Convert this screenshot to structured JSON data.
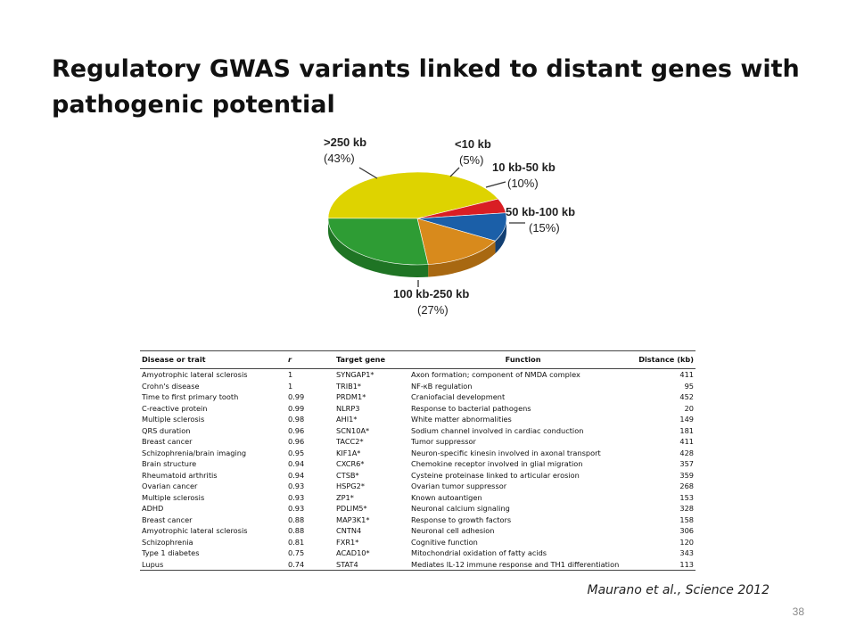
{
  "slide": {
    "title": "Regulatory GWAS variants linked to distant genes with pathogenic potential",
    "citation": "Maurano et al., Science 2012",
    "page_number": "38"
  },
  "pie": {
    "slices": [
      {
        "label": ">250 kb",
        "pct": "(43%)",
        "color": "#ded300",
        "side": "#b5aa00"
      },
      {
        "label": "<10 kb",
        "pct": "(5%)",
        "color": "#d91e24",
        "side": "#a8151a"
      },
      {
        "label": "10 kb-50 kb",
        "pct": "(10%)",
        "color": "#1b5fa8",
        "side": "#123f72"
      },
      {
        "label": "50 kb-100 kb",
        "pct": "(15%)",
        "color": "#d88a1c",
        "side": "#a86811"
      },
      {
        "label": "100 kb-250 kb",
        "pct": "(27%)",
        "color": "#2e9c34",
        "side": "#1f7424"
      }
    ]
  },
  "table": {
    "headers": {
      "trait": "Disease or trait",
      "r": "r",
      "gene": "Target gene",
      "function": "Function",
      "distance": "Distance (kb)"
    },
    "rows": [
      {
        "trait": "Amyotrophic lateral sclerosis",
        "r": "1",
        "gene": "SYNGAP1*",
        "function": "Axon formation; component of NMDA complex",
        "distance": "411"
      },
      {
        "trait": "Crohn's disease",
        "r": "1",
        "gene": "TRIB1*",
        "function": "NF-κB regulation",
        "distance": "95"
      },
      {
        "trait": "Time to first primary tooth",
        "r": "0.99",
        "gene": "PRDM1*",
        "function": "Craniofacial development",
        "distance": "452"
      },
      {
        "trait": "C-reactive protein",
        "r": "0.99",
        "gene": "NLRP3",
        "function": "Response to bacterial pathogens",
        "distance": "20"
      },
      {
        "trait": "Multiple sclerosis",
        "r": "0.98",
        "gene": "AHI1*",
        "function": "White matter abnormalities",
        "distance": "149"
      },
      {
        "trait": "QRS duration",
        "r": "0.96",
        "gene": "SCN10A*",
        "function": "Sodium channel involved in cardiac conduction",
        "distance": "181"
      },
      {
        "trait": "Breast cancer",
        "r": "0.96",
        "gene": "TACC2*",
        "function": "Tumor suppressor",
        "distance": "411"
      },
      {
        "trait": "Schizophrenia/brain imaging",
        "r": "0.95",
        "gene": "KIF1A*",
        "function": "Neuron-specific kinesin involved in axonal transport",
        "distance": "428"
      },
      {
        "trait": "Brain structure",
        "r": "0.94",
        "gene": "CXCR6*",
        "function": "Chemokine receptor involved in glial migration",
        "distance": "357"
      },
      {
        "trait": "Rheumatoid arthritis",
        "r": "0.94",
        "gene": "CTSB*",
        "function": "Cysteine proteinase linked to articular erosion",
        "distance": "359"
      },
      {
        "trait": "Ovarian cancer",
        "r": "0.93",
        "gene": "HSPG2*",
        "function": "Ovarian tumor suppressor",
        "distance": "268"
      },
      {
        "trait": "Multiple sclerosis",
        "r": "0.93",
        "gene": "ZP1*",
        "function": "Known autoantigen",
        "distance": "153"
      },
      {
        "trait": "ADHD",
        "r": "0.93",
        "gene": "PDLIM5*",
        "function": "Neuronal calcium signaling",
        "distance": "328"
      },
      {
        "trait": "Breast cancer",
        "r": "0.88",
        "gene": "MAP3K1*",
        "function": "Response to growth factors",
        "distance": "158"
      },
      {
        "trait": "Amyotrophic lateral sclerosis",
        "r": "0.88",
        "gene": "CNTN4",
        "function": "Neuronal cell adhesion",
        "distance": "306"
      },
      {
        "trait": "Schizophrenia",
        "r": "0.81",
        "gene": "FXR1*",
        "function": "Cognitive function",
        "distance": "120"
      },
      {
        "trait": "Type 1 diabetes",
        "r": "0.75",
        "gene": "ACAD10*",
        "function": "Mitochondrial oxidation of fatty acids",
        "distance": "343"
      },
      {
        "trait": "Lupus",
        "r": "0.74",
        "gene": "STAT4",
        "function": "Mediates IL-12 immune response and TH1 differentiation",
        "distance": "113"
      }
    ]
  }
}
